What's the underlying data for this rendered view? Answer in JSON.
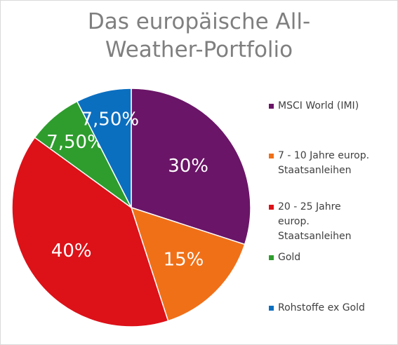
{
  "chart_data": {
    "type": "pie",
    "title_lines": [
      "Das europäische All-",
      "Weather-Portfolio"
    ],
    "slices": [
      {
        "label": "MSCI World (IMI)",
        "value": 30,
        "value_label": "30%",
        "color": "#6a1567"
      },
      {
        "label": "7 - 10 Jahre europ. Staatsanleihen",
        "label_lines": [
          "7 - 10 Jahre europ.",
          "Staatsanleihen"
        ],
        "value": 15,
        "value_label": "15%",
        "color": "#f07018"
      },
      {
        "label": "20 - 25 Jahre europ. Staatsanleihen",
        "label_lines": [
          "20 - 25 Jahre",
          "europ.",
          "Staatsanleihen"
        ],
        "value": 40,
        "value_label": "40%",
        "color": "#dd1118"
      },
      {
        "label": "Gold",
        "value": 7.5,
        "value_label": "7,50%",
        "color": "#2e9d2e"
      },
      {
        "label": "Rohstoffe ex Gold",
        "value": 7.5,
        "value_label": "7,50%",
        "color": "#0b6fc0"
      }
    ],
    "legend_position": "right"
  }
}
